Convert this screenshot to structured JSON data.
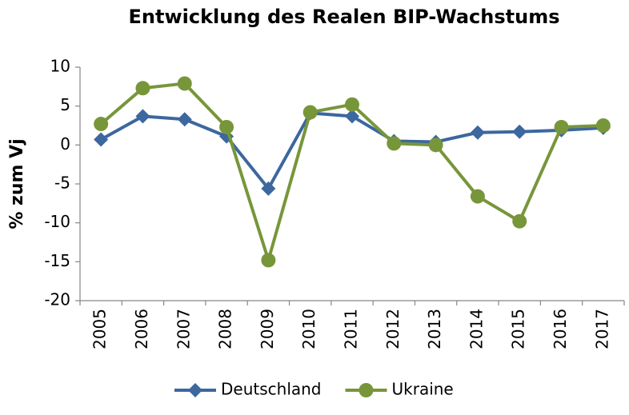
{
  "chart_data": {
    "type": "line",
    "title": "Entwicklung des Realen BIP-Wachstums",
    "y_label": "% zum Vj",
    "categories": [
      "2005",
      "2006",
      "2007",
      "2008",
      "2009",
      "2010",
      "2011",
      "2012",
      "2013",
      "2014",
      "2015",
      "2016",
      "2017"
    ],
    "series": [
      {
        "name": "Deutschland",
        "color": "#3c679f",
        "marker": "diamond",
        "values": [
          0.7,
          3.7,
          3.3,
          1.1,
          -5.6,
          4.1,
          3.7,
          0.5,
          0.4,
          1.6,
          1.7,
          1.9,
          2.2
        ]
      },
      {
        "name": "Ukraine",
        "color": "#77963a",
        "marker": "circle",
        "values": [
          2.7,
          7.3,
          7.9,
          2.3,
          -14.8,
          4.2,
          5.2,
          0.2,
          0.0,
          -6.6,
          -9.8,
          2.3,
          2.5
        ]
      }
    ],
    "ylim": [
      -20,
      10
    ],
    "yticks": [
      -20,
      -15,
      -10,
      -5,
      0,
      5,
      10
    ],
    "grid": false,
    "legend": "bottom"
  }
}
